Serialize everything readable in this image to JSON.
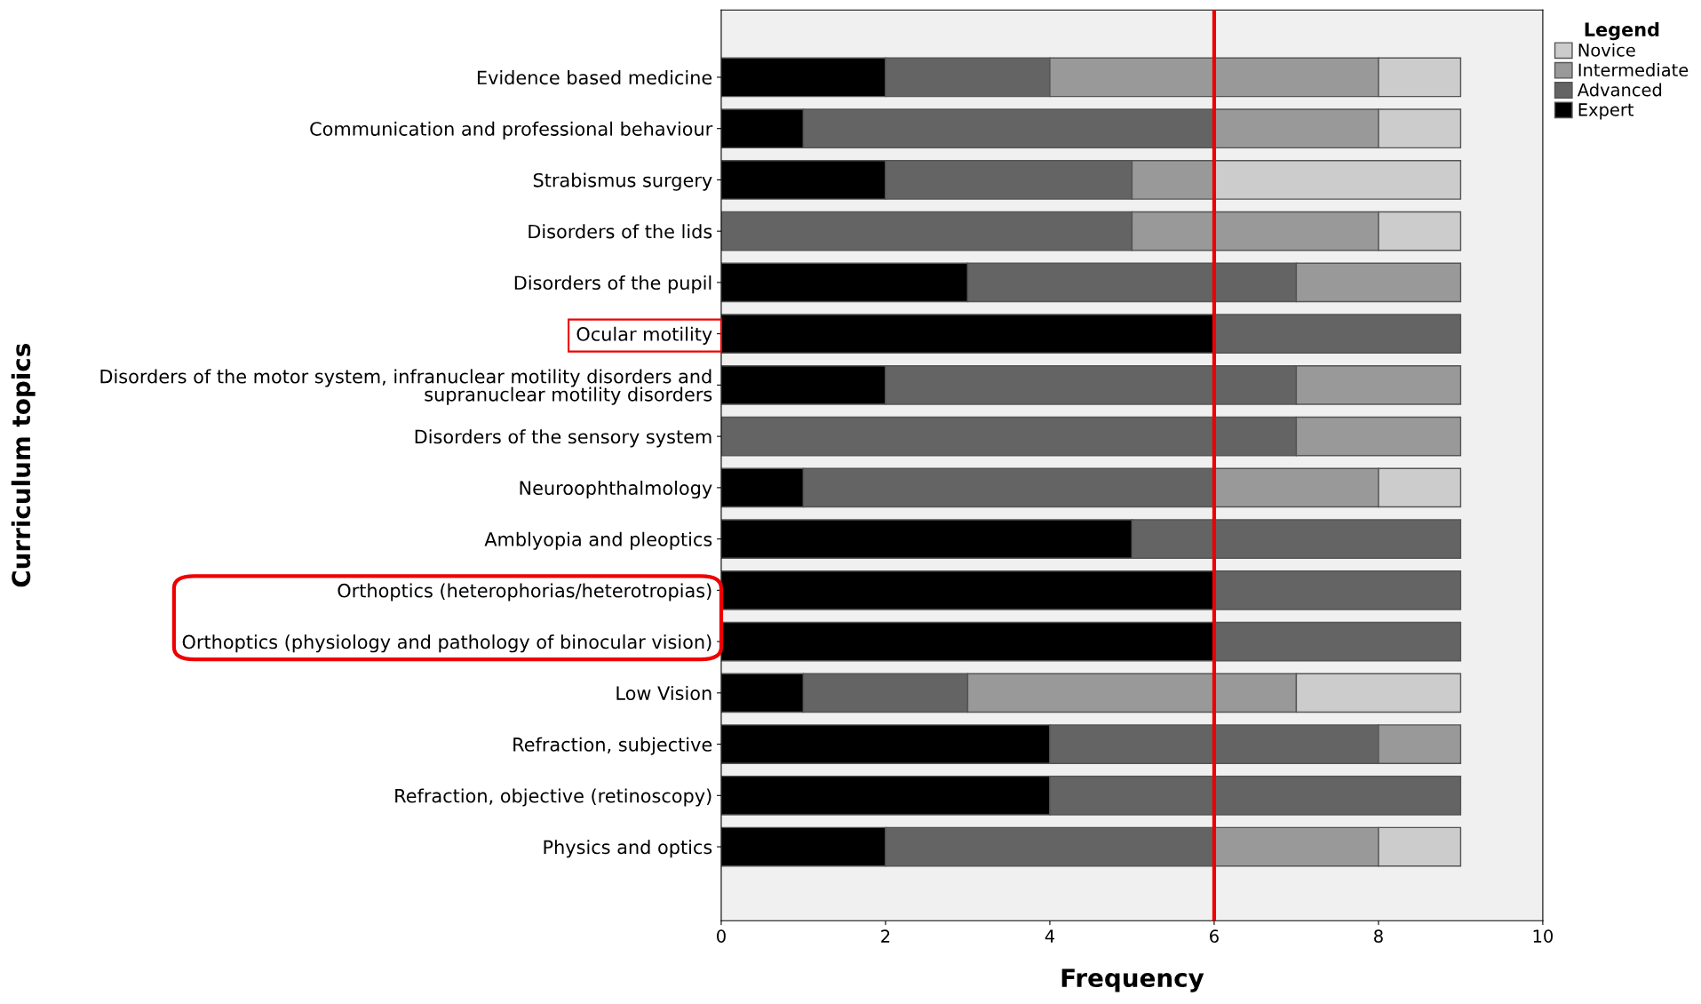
{
  "chart_data": {
    "type": "bar",
    "orientation": "horizontal",
    "stacked": true,
    "xlabel": "Frequency",
    "ylabel": "Curriculum topics",
    "legend_title": "Legend",
    "legend": "top right",
    "categories": [
      "Evidence based medicine",
      "Communication and professional behaviour",
      "Strabismus surgery",
      "Disorders of the lids",
      "Disorders of the pupil",
      "Ocular motility",
      "Disorders of the motor system, infranuclear motility disorders and\nsupranuclear motility disorders",
      "Disorders of the sensory system",
      "Neuroophthalmology",
      "Amblyopia and pleoptics",
      "Orthoptics (heterophorias/heterotropias)",
      "Orthoptics (physiology and pathology of binocular vision)",
      "Low Vision",
      "Refraction, subjective",
      "Refraction, objective (retinoscopy)",
      "Physics and optics"
    ],
    "series": [
      {
        "name": "Expert",
        "color": "#000000",
        "values": [
          2,
          1,
          2,
          null,
          3,
          6,
          2,
          null,
          1,
          5,
          6,
          6,
          1,
          4,
          4,
          2
        ]
      },
      {
        "name": "Advanced",
        "color": "#646464",
        "values": [
          2,
          5,
          3,
          5,
          4,
          3,
          5,
          7,
          5,
          4,
          3,
          3,
          2,
          4,
          5,
          4
        ]
      },
      {
        "name": "Intermediate",
        "color": "#999999",
        "values": [
          4,
          2,
          1,
          3,
          2,
          null,
          2,
          2,
          2,
          null,
          null,
          null,
          4,
          1,
          null,
          2
        ]
      },
      {
        "name": "Novice",
        "color": "#cccccc",
        "values": [
          1,
          1,
          3,
          1,
          null,
          null,
          null,
          null,
          1,
          null,
          null,
          null,
          2,
          null,
          null,
          1
        ]
      }
    ],
    "xlim": [
      0,
      10
    ],
    "xticks": [
      0,
      2,
      4,
      6,
      8,
      10
    ],
    "grid": false,
    "ref_lines": [
      {
        "axis": "x",
        "value": 6,
        "color": "#ee0000"
      }
    ]
  }
}
